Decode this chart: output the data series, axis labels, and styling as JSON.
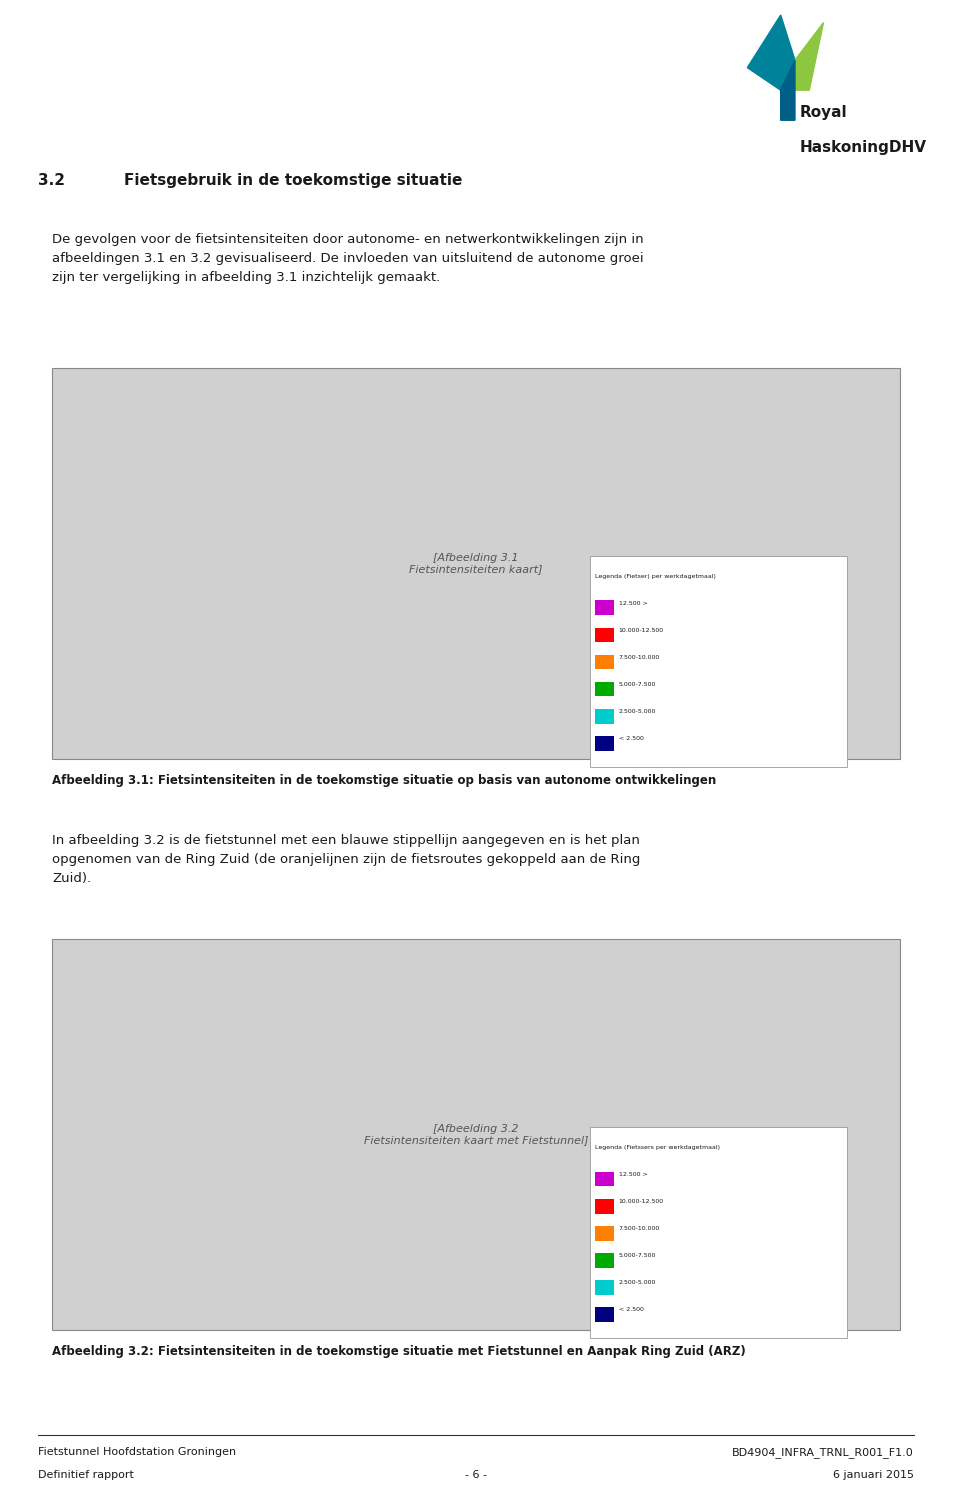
{
  "page_width": 9.6,
  "page_height": 15.03,
  "background_color": "#ffffff",
  "logo_text_line1": "Royal",
  "logo_text_line2": "HaskoningDHV",
  "section_number": "3.2",
  "section_title": "Fietsgebruik in de toekomstige situatie",
  "paragraph1": "De gevolgen voor de fietsintensiteiten door autonome- en netwerkontwikkelingen zijn in\nafbeeldingen 3.1 en 3.2 gevisualiseerd. De invloeden van uitsluitend de autonome groei\nzijn ter vergelijking in afbeelding 3.1 inzichtelijk gemaakt.",
  "map1_caption": "Afbeelding 3.1: Fietsintensiteiten in de toekomstige situatie op basis van autonome ontwikkelingen",
  "paragraph2": "In afbeelding 3.2 is de fietstunnel met een blauwe stippellijn aangegeven en is het plan\nopgenomen van de Ring Zuid (de oranjelijnen zijn de fietsroutes gekoppeld aan de Ring\nZuid).",
  "map2_caption": "Afbeelding 3.2: Fietsintensiteiten in de toekomstige situatie met Fietstunnel en Aanpak Ring Zuid (ARZ)",
  "footer_left_line1": "Fietstunnel Hoofdstation Groningen",
  "footer_left_line2": "Definitief rapport",
  "footer_center": "- 6 -",
  "footer_right_line1": "BD4904_INFRA_TRNL_R001_F1.0",
  "footer_right_line2": "6 januari 2015",
  "legend1_title": "Legenda (Fietser) per werkdagetmaal)",
  "legend1_items": [
    {
      "label": "12.500 >",
      "color": "#cc00cc"
    },
    {
      "label": "10.000-12.500",
      "color": "#ff0000"
    },
    {
      "label": "7.500-10.000",
      "color": "#ff8000"
    },
    {
      "label": "5.000-7.500",
      "color": "#00aa00"
    },
    {
      "label": "2.500-5.000",
      "color": "#00cccc"
    },
    {
      "label": "< 2.500",
      "color": "#000080"
    }
  ],
  "legend2_title": "Legenda (Fietssers per werkdagetmaal)",
  "legend2_items": [
    {
      "label": "12.500 >",
      "color": "#cc00cc"
    },
    {
      "label": "10.000-12.500",
      "color": "#ff0000"
    },
    {
      "label": "7.500-10.000",
      "color": "#ff8000"
    },
    {
      "label": "5.000-7.500",
      "color": "#00aa00"
    },
    {
      "label": "2.500-5.000",
      "color": "#00cccc"
    },
    {
      "label": "< 2.500",
      "color": "#000080"
    }
  ],
  "map_color": "#d0d0d0",
  "map_border_color": "#888888",
  "logo_teal": "#00829b",
  "logo_green": "#8dc63f",
  "logo_blue": "#005f87"
}
